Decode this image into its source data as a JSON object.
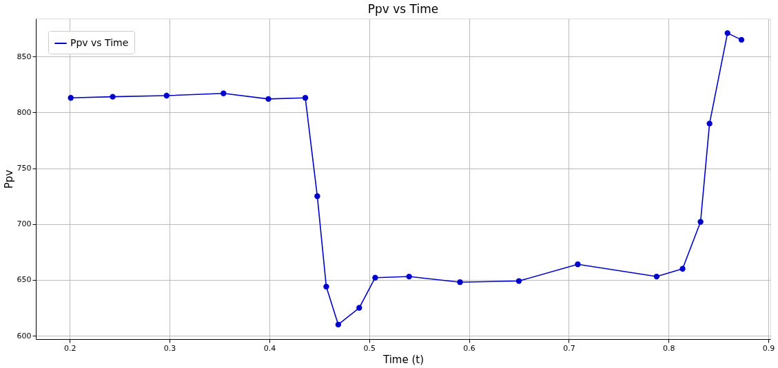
{
  "chart_data": {
    "type": "line",
    "title": "Ppv vs Time",
    "xlabel": "Time (t)",
    "ylabel": "Ppv",
    "x": [
      0.201,
      0.243,
      0.297,
      0.354,
      0.399,
      0.436,
      0.448,
      0.457,
      0.469,
      0.49,
      0.506,
      0.54,
      0.591,
      0.65,
      0.709,
      0.788,
      0.814,
      0.832,
      0.841,
      0.859,
      0.873
    ],
    "series": [
      {
        "name": "Ppv vs Time",
        "color": "#0000cc",
        "values": [
          813,
          814,
          815,
          817,
          812,
          813,
          725,
          644,
          610,
          625,
          652,
          653,
          648,
          649,
          664,
          653,
          660,
          702,
          790,
          871,
          865
        ]
      }
    ],
    "xlim": [
      0.166,
      0.902
    ],
    "xticks": [
      0.2,
      0.3,
      0.4,
      0.5,
      0.6,
      0.7,
      0.8,
      0.9
    ],
    "ylim": [
      597,
      884
    ],
    "yticks": [
      600,
      650,
      700,
      750,
      800,
      850
    ],
    "grid": true,
    "legend": "top left",
    "marker": "circle",
    "line_style": "solid"
  }
}
